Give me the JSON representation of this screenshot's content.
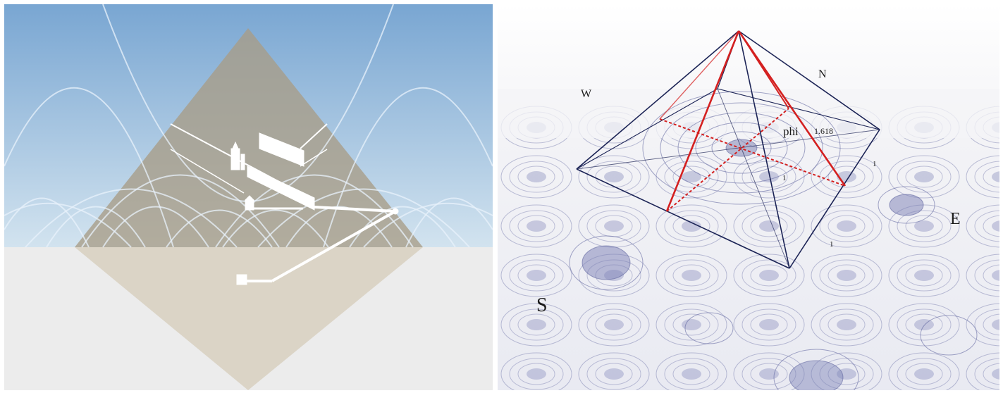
{
  "diagram": {
    "compass": {
      "west": "W",
      "north": "N",
      "east": "E",
      "south": "S"
    },
    "labels": {
      "phi": "phi",
      "phi_value": "1.618",
      "unit_1": "1",
      "unit_2": "1",
      "unit_3": "1"
    },
    "colors": {
      "sky_top": "#7ea9d4",
      "sky_bottom": "#cde0ee",
      "ground": "#ececec",
      "pyramid_fill": "#a89c86",
      "chambers": "#ffffff",
      "edge_dark": "#1c2456",
      "edge_red": "#d42020",
      "ripple": "#5a5f9a"
    }
  }
}
